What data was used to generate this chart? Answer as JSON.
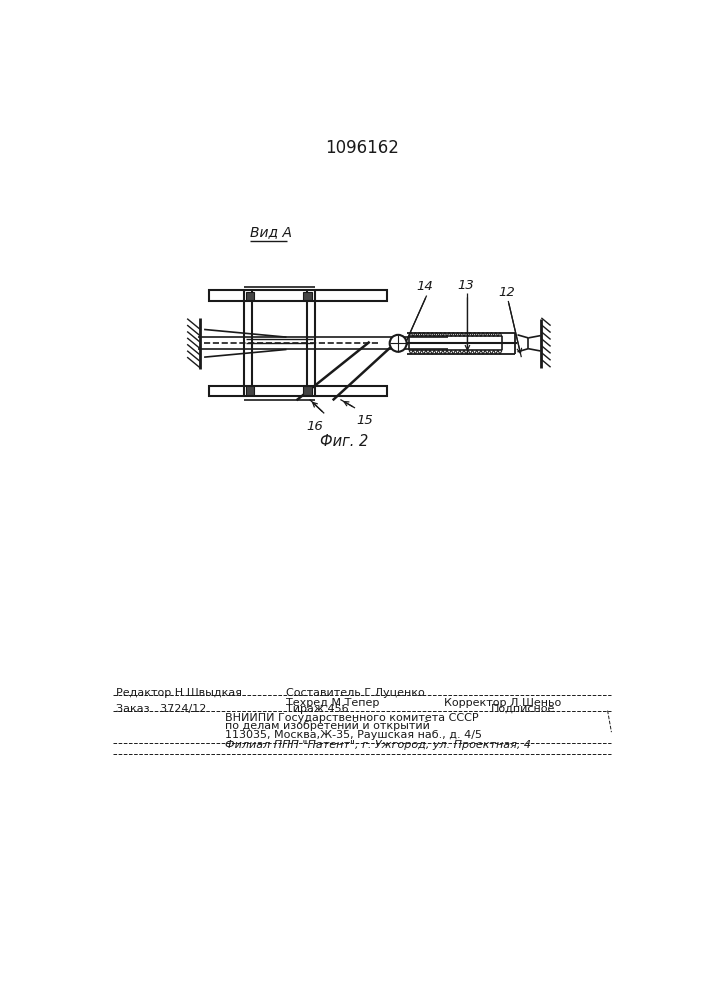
{
  "title": "1096162",
  "vid_a_label": "Вид А",
  "fig_label": "Фиг. 2",
  "label_12": "12",
  "label_13": "13",
  "label_14": "14",
  "label_15": "15",
  "label_16": "16",
  "footer_line1_left": "Редактор Н.Швыдкая",
  "footer_line1_center": "Составитель Г.Луценко",
  "footer_line2_center": "Техред М.Тепер",
  "footer_line2_right": "Корректор Л.Шеньо",
  "footer_line3_left": "Заказ   3724/12",
  "footer_line3_center": "Тираж 456",
  "footer_line3_right": "Подписное",
  "footer_line4": "ВНИИПИ Государственного комитета СССР",
  "footer_line5": "по делам изобретений и открытий",
  "footer_line6": "113035, Москва,Ж-35, Раушская наб., д. 4/5",
  "footer_line7": "Филиал ППП \"Патент\", г. Ужгород, ул. Проектная, 4",
  "bg_color": "#ffffff",
  "line_color": "#1a1a1a",
  "text_color": "#1a1a1a"
}
